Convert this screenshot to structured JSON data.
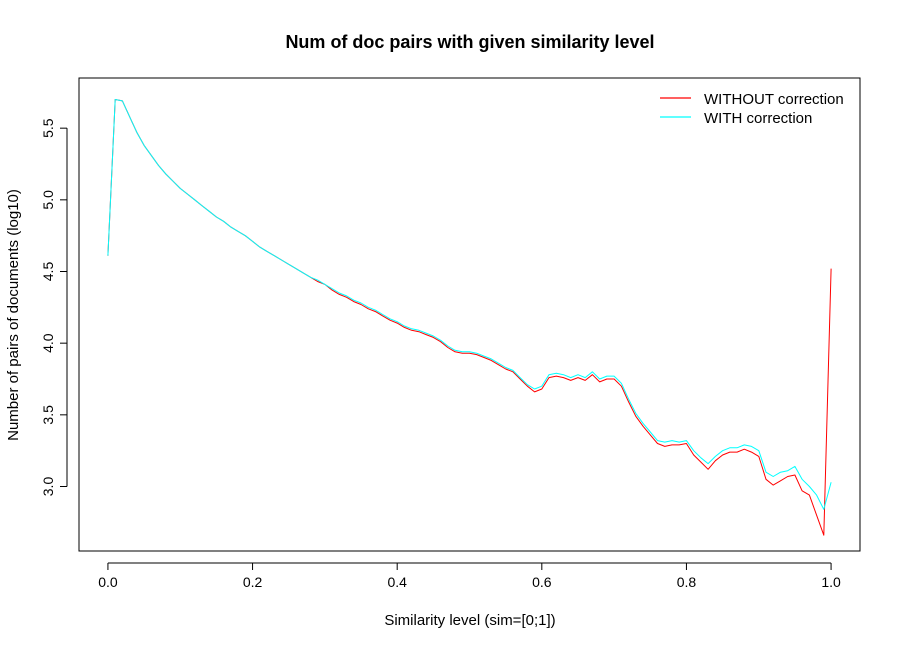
{
  "chart_data": {
    "type": "line",
    "title": "Num of doc pairs with given similarity level",
    "xlabel": "Similarity level (sim=[0;1])",
    "ylabel": "Number of pairs of documents (log10)",
    "xlim": [
      -0.04,
      1.04
    ],
    "ylim": [
      2.55,
      5.85
    ],
    "xticks": [
      0.0,
      0.2,
      0.4,
      0.6,
      0.8,
      1.0
    ],
    "xtick_labels": [
      "0.0",
      "0.2",
      "0.4",
      "0.6",
      "0.8",
      "1.0"
    ],
    "yticks": [
      3.0,
      3.5,
      4.0,
      4.5,
      5.0,
      5.5
    ],
    "ytick_labels": [
      "3.0",
      "3.5",
      "4.0",
      "4.5",
      "5.0",
      "5.5"
    ],
    "grid": false,
    "legend_position": "top-right",
    "x": [
      0.0,
      0.01,
      0.02,
      0.03,
      0.04,
      0.05,
      0.06,
      0.07,
      0.08,
      0.09,
      0.1,
      0.11,
      0.12,
      0.13,
      0.14,
      0.15,
      0.16,
      0.17,
      0.18,
      0.19,
      0.2,
      0.21,
      0.22,
      0.23,
      0.24,
      0.25,
      0.26,
      0.27,
      0.28,
      0.29,
      0.3,
      0.31,
      0.32,
      0.33,
      0.34,
      0.35,
      0.36,
      0.37,
      0.38,
      0.39,
      0.4,
      0.41,
      0.42,
      0.43,
      0.44,
      0.45,
      0.46,
      0.47,
      0.48,
      0.49,
      0.5,
      0.51,
      0.52,
      0.53,
      0.54,
      0.55,
      0.56,
      0.57,
      0.58,
      0.59,
      0.6,
      0.61,
      0.62,
      0.63,
      0.64,
      0.65,
      0.66,
      0.67,
      0.68,
      0.69,
      0.7,
      0.71,
      0.72,
      0.73,
      0.74,
      0.75,
      0.76,
      0.77,
      0.78,
      0.79,
      0.8,
      0.81,
      0.82,
      0.83,
      0.84,
      0.85,
      0.86,
      0.87,
      0.88,
      0.89,
      0.9,
      0.91,
      0.92,
      0.93,
      0.94,
      0.95,
      0.96,
      0.97,
      0.98,
      0.99,
      1.0
    ],
    "series": [
      {
        "name": "WITHOUT correction",
        "color": "#ff0000",
        "values": [
          4.61,
          5.7,
          5.69,
          5.58,
          5.47,
          5.38,
          5.31,
          5.24,
          5.18,
          5.13,
          5.08,
          5.04,
          5.0,
          4.96,
          4.92,
          4.88,
          4.85,
          4.81,
          4.78,
          4.75,
          4.71,
          4.67,
          4.64,
          4.61,
          4.58,
          4.55,
          4.52,
          4.49,
          4.46,
          4.43,
          4.41,
          4.37,
          4.34,
          4.32,
          4.29,
          4.27,
          4.24,
          4.22,
          4.19,
          4.16,
          4.14,
          4.11,
          4.09,
          4.08,
          4.06,
          4.04,
          4.01,
          3.97,
          3.94,
          3.93,
          3.93,
          3.92,
          3.9,
          3.88,
          3.85,
          3.82,
          3.8,
          3.75,
          3.7,
          3.66,
          3.68,
          3.76,
          3.77,
          3.76,
          3.74,
          3.76,
          3.74,
          3.78,
          3.73,
          3.75,
          3.75,
          3.7,
          3.59,
          3.49,
          3.42,
          3.36,
          3.3,
          3.28,
          3.29,
          3.29,
          3.3,
          3.22,
          3.17,
          3.12,
          3.18,
          3.22,
          3.24,
          3.24,
          3.26,
          3.24,
          3.21,
          3.05,
          3.01,
          3.04,
          3.07,
          3.08,
          2.97,
          2.94,
          2.8,
          2.66,
          4.52
        ]
      },
      {
        "name": "WITH correction",
        "color": "#00ffff",
        "values": [
          4.61,
          5.7,
          5.69,
          5.58,
          5.47,
          5.38,
          5.31,
          5.24,
          5.18,
          5.13,
          5.08,
          5.04,
          5.0,
          4.96,
          4.92,
          4.88,
          4.85,
          4.81,
          4.78,
          4.75,
          4.71,
          4.67,
          4.64,
          4.61,
          4.58,
          4.55,
          4.52,
          4.49,
          4.46,
          4.44,
          4.41,
          4.38,
          4.35,
          4.33,
          4.3,
          4.28,
          4.25,
          4.23,
          4.2,
          4.17,
          4.15,
          4.12,
          4.1,
          4.09,
          4.07,
          4.05,
          4.02,
          3.98,
          3.95,
          3.94,
          3.94,
          3.93,
          3.91,
          3.89,
          3.86,
          3.83,
          3.81,
          3.76,
          3.71,
          3.68,
          3.7,
          3.78,
          3.79,
          3.78,
          3.76,
          3.78,
          3.76,
          3.8,
          3.75,
          3.77,
          3.77,
          3.72,
          3.61,
          3.51,
          3.44,
          3.38,
          3.32,
          3.31,
          3.32,
          3.31,
          3.32,
          3.25,
          3.2,
          3.16,
          3.21,
          3.25,
          3.27,
          3.27,
          3.29,
          3.28,
          3.25,
          3.1,
          3.07,
          3.1,
          3.11,
          3.14,
          3.05,
          3.0,
          2.94,
          2.84,
          3.03
        ]
      }
    ]
  }
}
